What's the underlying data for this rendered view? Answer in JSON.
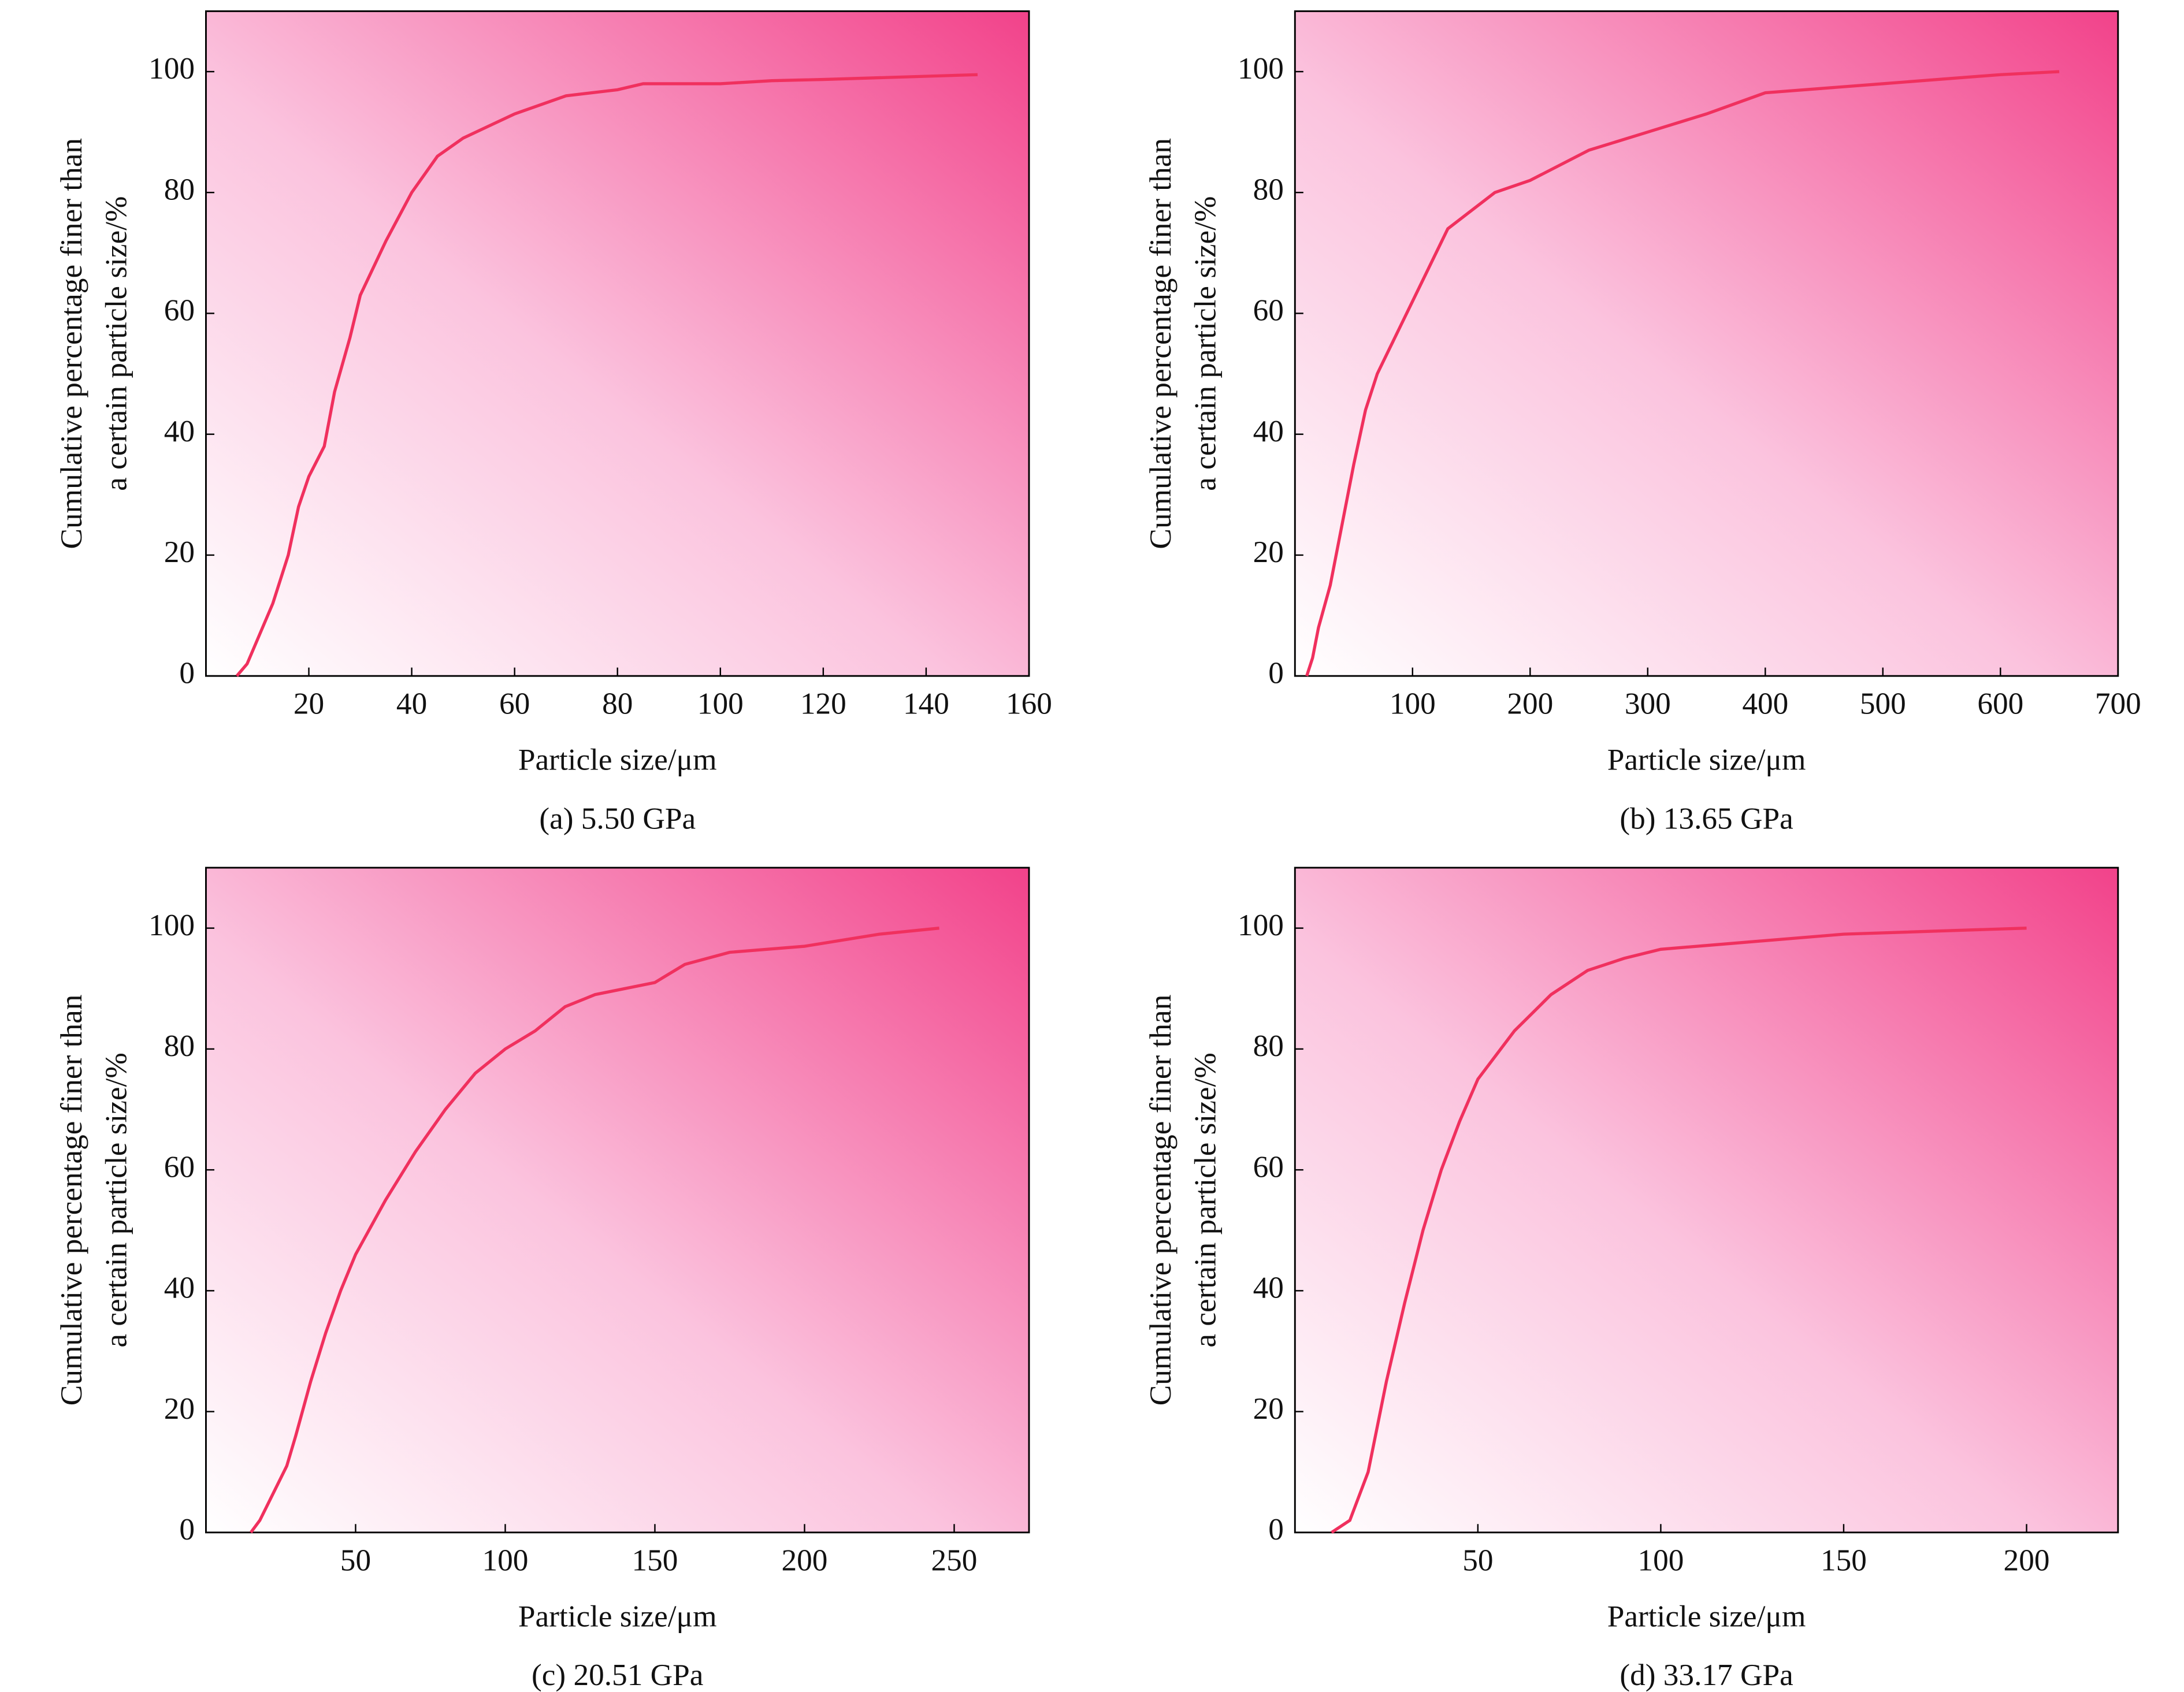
{
  "chart_data": [
    {
      "type": "line",
      "caption": "(a) 5.50 GPa",
      "xlabel": "Particle size/μm",
      "ylabel": [
        "Cumulative percentage finer than",
        "a certain particle size/%"
      ],
      "xlim": [
        0,
        160
      ],
      "ylim": [
        0,
        110
      ],
      "xticks": [
        20,
        40,
        60,
        80,
        100,
        120,
        140,
        160
      ],
      "yticks": [
        0,
        20,
        40,
        60,
        80,
        100
      ],
      "series": [
        {
          "color": "#f0305e",
          "x": [
            6,
            8,
            10,
            13,
            16,
            18,
            20,
            23,
            25,
            28,
            30,
            35,
            40,
            45,
            50,
            55,
            60,
            70,
            80,
            85,
            100,
            110,
            120,
            150
          ],
          "values": [
            0,
            2,
            6,
            12,
            20,
            28,
            33,
            38,
            47,
            56,
            63,
            72,
            80,
            86,
            89,
            91,
            93,
            96,
            97,
            98,
            98,
            98.5,
            98.7,
            99.5
          ]
        }
      ]
    },
    {
      "type": "line",
      "caption": "(b) 13.65 GPa",
      "xlabel": "Particle size/μm",
      "ylabel": [
        "Cumulative percentage finer than",
        "a certain particle size/%"
      ],
      "xlim": [
        0,
        700
      ],
      "ylim": [
        0,
        110
      ],
      "xticks": [
        100,
        200,
        300,
        400,
        500,
        600,
        700
      ],
      "yticks": [
        0,
        20,
        40,
        60,
        80,
        100
      ],
      "series": [
        {
          "color": "#f0305e",
          "x": [
            10,
            15,
            20,
            30,
            40,
            50,
            60,
            70,
            80,
            90,
            100,
            110,
            120,
            130,
            150,
            170,
            200,
            250,
            300,
            350,
            400,
            500,
            600,
            650
          ],
          "values": [
            0,
            3,
            8,
            15,
            25,
            35,
            44,
            50,
            54,
            58,
            62,
            66,
            70,
            74,
            77,
            80,
            82,
            87,
            90,
            93,
            96.5,
            98,
            99.5,
            100
          ]
        }
      ]
    },
    {
      "type": "line",
      "caption": "(c) 20.51 GPa",
      "xlabel": "Particle size/μm",
      "ylabel": [
        "Cumulative percentage finer than",
        "a certain particle size/%"
      ],
      "xlim": [
        0,
        275
      ],
      "ylim": [
        0,
        110
      ],
      "xticks": [
        50,
        100,
        150,
        200,
        250
      ],
      "yticks": [
        0,
        20,
        40,
        60,
        80,
        100
      ],
      "series": [
        {
          "color": "#f0305e",
          "x": [
            15,
            18,
            22,
            27,
            30,
            35,
            40,
            45,
            50,
            60,
            70,
            80,
            90,
            100,
            110,
            120,
            130,
            150,
            160,
            175,
            200,
            225,
            245
          ],
          "values": [
            0,
            2,
            6,
            11,
            16,
            25,
            33,
            40,
            46,
            55,
            63,
            70,
            76,
            80,
            83,
            87,
            89,
            91,
            94,
            96,
            97,
            99,
            100
          ]
        }
      ]
    },
    {
      "type": "line",
      "caption": "(d) 33.17 GPa",
      "xlabel": "Particle size/μm",
      "ylabel": [
        "Cumulative percentage finer than",
        "a certain particle size/%"
      ],
      "xlim": [
        0,
        225
      ],
      "ylim": [
        0,
        110
      ],
      "xticks": [
        50,
        100,
        150,
        200
      ],
      "yticks": [
        0,
        20,
        40,
        60,
        80,
        100
      ],
      "series": [
        {
          "color": "#f0305e",
          "x": [
            10,
            15,
            20,
            25,
            30,
            35,
            40,
            45,
            50,
            55,
            60,
            70,
            80,
            90,
            100,
            120,
            150,
            200
          ],
          "values": [
            0,
            2,
            10,
            25,
            38,
            50,
            60,
            68,
            75,
            79,
            83,
            89,
            93,
            95,
            96.5,
            97.5,
            99,
            100
          ]
        }
      ]
    }
  ]
}
